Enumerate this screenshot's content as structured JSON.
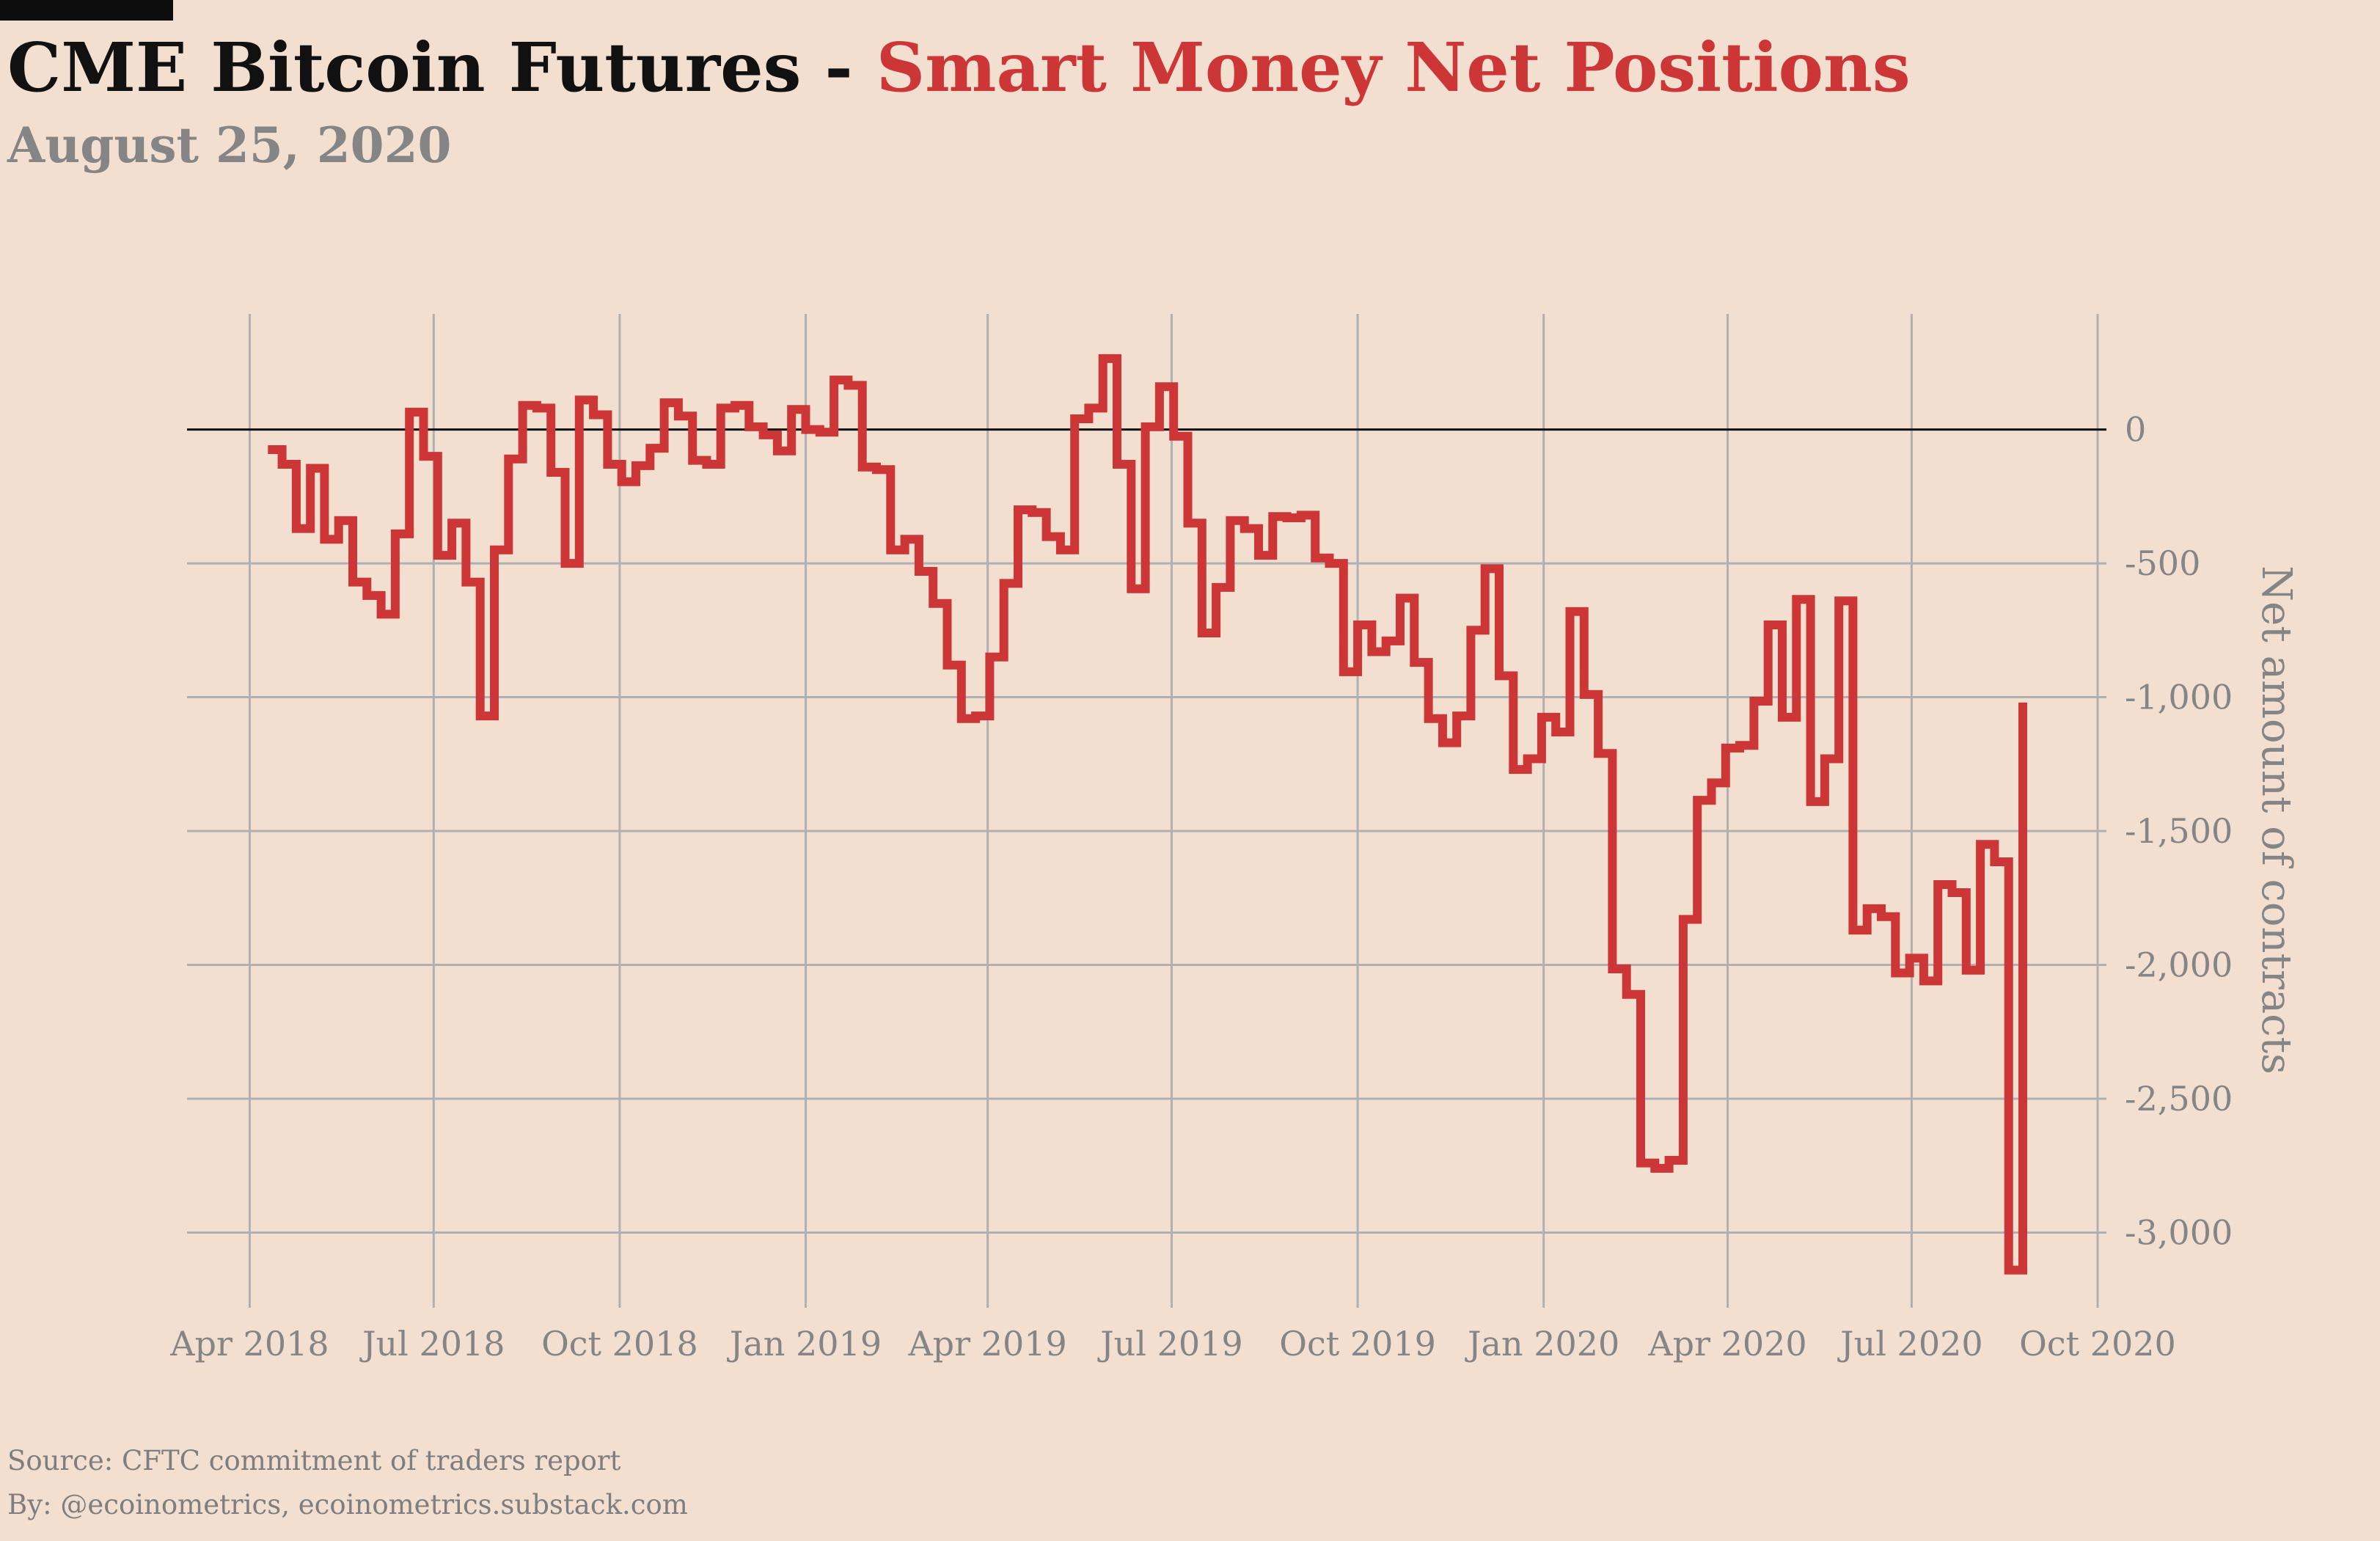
{
  "header": {
    "title_main": "CME Bitcoin Futures",
    "title_sep": " - ",
    "title_accent": "Smart Money Net Positions",
    "subtitle": "August 25, 2020"
  },
  "footer": {
    "source": "Source: CFTC commitment of traders report",
    "by": "By: @ecoinometrics, ecoinometrics.substack.com"
  },
  "colors": {
    "background": "#f2dfcf",
    "line": "#cc3637",
    "grid": "#b0b0b0",
    "zero_line": "#111111",
    "text_muted": "#858585"
  },
  "chart_data": {
    "type": "line",
    "step": true,
    "title": "CME Bitcoin Futures - Smart Money Net Positions",
    "subtitle": "August 25, 2020",
    "xlabel": "",
    "ylabel": "Net amount of contracts",
    "y_axis_side": "right",
    "grid": true,
    "legend": "none",
    "xlim": [
      "2018-03-01",
      "2020-10-01"
    ],
    "ylim": [
      -3300,
      440
    ],
    "x_ticks": [
      {
        "date": "2018-04-01",
        "label": "Apr 2018"
      },
      {
        "date": "2018-07-01",
        "label": "Jul 2018"
      },
      {
        "date": "2018-10-01",
        "label": "Oct 2018"
      },
      {
        "date": "2019-01-01",
        "label": "Jan 2019"
      },
      {
        "date": "2019-04-01",
        "label": "Apr 2019"
      },
      {
        "date": "2019-07-01",
        "label": "Jul 2019"
      },
      {
        "date": "2019-10-01",
        "label": "Oct 2019"
      },
      {
        "date": "2020-01-01",
        "label": "Jan 2020"
      },
      {
        "date": "2020-04-01",
        "label": "Apr 2020"
      },
      {
        "date": "2020-07-01",
        "label": "Jul 2020"
      },
      {
        "date": "2020-10-01",
        "label": "Oct 2020"
      }
    ],
    "y_ticks": [
      {
        "value": 0,
        "label": "0"
      },
      {
        "value": -500,
        "label": "-500"
      },
      {
        "value": -1000,
        "label": "-1,000"
      },
      {
        "value": -1500,
        "label": "-1,500"
      },
      {
        "value": -2000,
        "label": "-2,000"
      },
      {
        "value": -2500,
        "label": "-2,500"
      },
      {
        "value": -3000,
        "label": "-3,000"
      }
    ],
    "reference_line": 0,
    "series": [
      {
        "points": [
          [
            "2018-04-10",
            -75
          ],
          [
            "2018-04-17",
            -130
          ],
          [
            "2018-04-24",
            -370
          ],
          [
            "2018-05-01",
            -145
          ],
          [
            "2018-05-08",
            -410
          ],
          [
            "2018-05-15",
            -340
          ],
          [
            "2018-05-22",
            -570
          ],
          [
            "2018-05-29",
            -620
          ],
          [
            "2018-06-05",
            -690
          ],
          [
            "2018-06-12",
            -390
          ],
          [
            "2018-06-19",
            65
          ],
          [
            "2018-06-26",
            -100
          ],
          [
            "2018-07-03",
            -470
          ],
          [
            "2018-07-10",
            -350
          ],
          [
            "2018-07-17",
            -570
          ],
          [
            "2018-07-24",
            -1070
          ],
          [
            "2018-07-31",
            -450
          ],
          [
            "2018-08-07",
            -110
          ],
          [
            "2018-08-14",
            90
          ],
          [
            "2018-08-21",
            80
          ],
          [
            "2018-08-28",
            -160
          ],
          [
            "2018-09-04",
            -500
          ],
          [
            "2018-09-11",
            110
          ],
          [
            "2018-09-18",
            55
          ],
          [
            "2018-09-25",
            -130
          ],
          [
            "2018-10-02",
            -195
          ],
          [
            "2018-10-09",
            -135
          ],
          [
            "2018-10-16",
            -70
          ],
          [
            "2018-10-23",
            100
          ],
          [
            "2018-10-30",
            50
          ],
          [
            "2018-11-06",
            -115
          ],
          [
            "2018-11-13",
            -130
          ],
          [
            "2018-11-20",
            80
          ],
          [
            "2018-11-27",
            90
          ],
          [
            "2018-12-04",
            10
          ],
          [
            "2018-12-11",
            -20
          ],
          [
            "2018-12-18",
            -80
          ],
          [
            "2018-12-25",
            75
          ],
          [
            "2019-01-01",
            0
          ],
          [
            "2019-01-08",
            -10
          ],
          [
            "2019-01-15",
            185
          ],
          [
            "2019-01-22",
            165
          ],
          [
            "2019-01-29",
            -140
          ],
          [
            "2019-02-05",
            -150
          ],
          [
            "2019-02-12",
            -450
          ],
          [
            "2019-02-19",
            -410
          ],
          [
            "2019-02-26",
            -530
          ],
          [
            "2019-03-05",
            -650
          ],
          [
            "2019-03-12",
            -880
          ],
          [
            "2019-03-19",
            -1080
          ],
          [
            "2019-03-26",
            -1070
          ],
          [
            "2019-04-02",
            -850
          ],
          [
            "2019-04-09",
            -575
          ],
          [
            "2019-04-16",
            -300
          ],
          [
            "2019-04-23",
            -310
          ],
          [
            "2019-04-30",
            -400
          ],
          [
            "2019-05-07",
            -450
          ],
          [
            "2019-05-14",
            40
          ],
          [
            "2019-05-21",
            80
          ],
          [
            "2019-05-28",
            265
          ],
          [
            "2019-06-04",
            -130
          ],
          [
            "2019-06-11",
            -595
          ],
          [
            "2019-06-18",
            10
          ],
          [
            "2019-06-25",
            160
          ],
          [
            "2019-07-02",
            -25
          ],
          [
            "2019-07-09",
            -350
          ],
          [
            "2019-07-16",
            -760
          ],
          [
            "2019-07-23",
            -590
          ],
          [
            "2019-07-30",
            -340
          ],
          [
            "2019-08-06",
            -370
          ],
          [
            "2019-08-13",
            -470
          ],
          [
            "2019-08-20",
            -325
          ],
          [
            "2019-08-27",
            -330
          ],
          [
            "2019-09-03",
            -320
          ],
          [
            "2019-09-10",
            -480
          ],
          [
            "2019-09-17",
            -500
          ],
          [
            "2019-09-24",
            -905
          ],
          [
            "2019-10-01",
            -730
          ],
          [
            "2019-10-08",
            -830
          ],
          [
            "2019-10-15",
            -790
          ],
          [
            "2019-10-22",
            -630
          ],
          [
            "2019-10-29",
            -870
          ],
          [
            "2019-11-05",
            -1080
          ],
          [
            "2019-11-12",
            -1170
          ],
          [
            "2019-11-19",
            -1070
          ],
          [
            "2019-11-26",
            -750
          ],
          [
            "2019-12-03",
            -520
          ],
          [
            "2019-12-10",
            -920
          ],
          [
            "2019-12-17",
            -1270
          ],
          [
            "2019-12-24",
            -1230
          ],
          [
            "2019-12-31",
            -1075
          ],
          [
            "2020-01-07",
            -1130
          ],
          [
            "2020-01-14",
            -680
          ],
          [
            "2020-01-21",
            -990
          ],
          [
            "2020-01-28",
            -1210
          ],
          [
            "2020-02-04",
            -2015
          ],
          [
            "2020-02-11",
            -2110
          ],
          [
            "2020-02-18",
            -2740
          ],
          [
            "2020-02-25",
            -2760
          ],
          [
            "2020-03-03",
            -2730
          ],
          [
            "2020-03-10",
            -1830
          ],
          [
            "2020-03-17",
            -1385
          ],
          [
            "2020-03-24",
            -1320
          ],
          [
            "2020-03-31",
            -1190
          ],
          [
            "2020-04-07",
            -1180
          ],
          [
            "2020-04-14",
            -1015
          ],
          [
            "2020-04-21",
            -730
          ],
          [
            "2020-04-28",
            -1075
          ],
          [
            "2020-05-05",
            -635
          ],
          [
            "2020-05-12",
            -1390
          ],
          [
            "2020-05-19",
            -1230
          ],
          [
            "2020-05-26",
            -640
          ],
          [
            "2020-06-02",
            -1870
          ],
          [
            "2020-06-09",
            -1790
          ],
          [
            "2020-06-16",
            -1820
          ],
          [
            "2020-06-23",
            -2030
          ],
          [
            "2020-06-30",
            -1975
          ],
          [
            "2020-07-07",
            -2060
          ],
          [
            "2020-07-14",
            -1700
          ],
          [
            "2020-07-21",
            -1730
          ],
          [
            "2020-07-28",
            -2020
          ],
          [
            "2020-08-04",
            -1550
          ],
          [
            "2020-08-11",
            -1615
          ],
          [
            "2020-08-18",
            -3140
          ],
          [
            "2020-08-25",
            -1020
          ]
        ]
      }
    ]
  }
}
